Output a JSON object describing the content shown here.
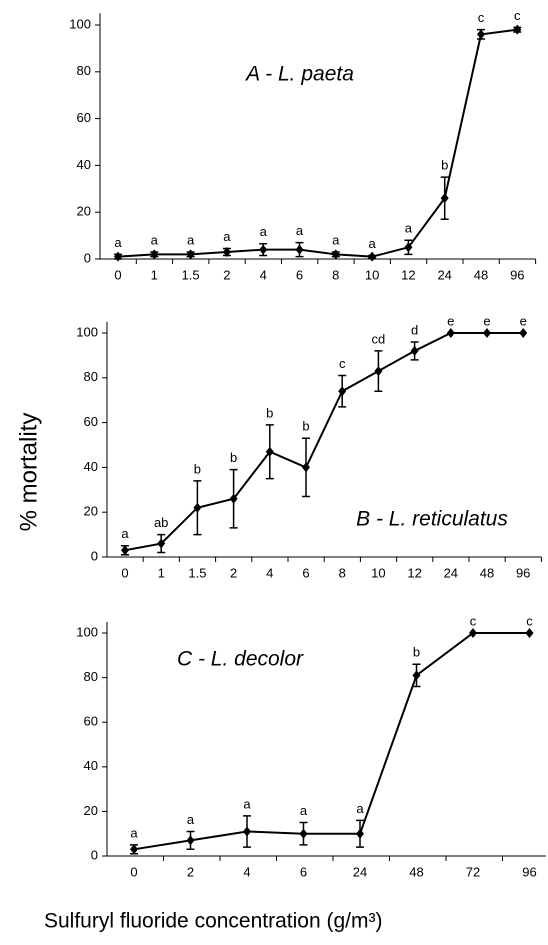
{
  "ylabel": "% mortality",
  "xlabel": "Sulfuryl fluoride concentration (g/m³)",
  "chart_data": [
    {
      "type": "line",
      "title": "A - L. paeta",
      "categories": [
        "0",
        "1",
        "1.5",
        "2",
        "4",
        "6",
        "8",
        "10",
        "12",
        "24",
        "48",
        "96"
      ],
      "ylim": [
        0,
        105
      ],
      "yticks": [
        0,
        20,
        40,
        60,
        80,
        100
      ],
      "series": [
        {
          "color": "#000000",
          "values": [
            1,
            2,
            2,
            3,
            4,
            4,
            2,
            1,
            5,
            26,
            96,
            98
          ],
          "errors": [
            1,
            1,
            1,
            1.5,
            2.5,
            3,
            1,
            0.5,
            3,
            9,
            2,
            1
          ],
          "annotations": [
            "a",
            "a",
            "a",
            "a",
            "a",
            "a",
            "a",
            "a",
            "a",
            "b",
            "c",
            "c"
          ]
        }
      ]
    },
    {
      "type": "line",
      "title": "B - L. reticulatus",
      "categories": [
        "0",
        "1",
        "1.5",
        "2",
        "4",
        "6",
        "8",
        "10",
        "12",
        "24",
        "48",
        "96"
      ],
      "ylim": [
        0,
        105
      ],
      "yticks": [
        0,
        20,
        40,
        60,
        80,
        100
      ],
      "series": [
        {
          "color": "#000000",
          "values": [
            3,
            6,
            22,
            26,
            47,
            40,
            74,
            83,
            92,
            100,
            100,
            100
          ],
          "errors": [
            2,
            4,
            12,
            13,
            12,
            13,
            7,
            9,
            4,
            0,
            0,
            0
          ],
          "annotations": [
            "a",
            "ab",
            "b",
            "b",
            "b",
            "b",
            "c",
            "cd",
            "d",
            "e",
            "e",
            "e"
          ]
        }
      ]
    },
    {
      "type": "line",
      "title": "C - L. decolor",
      "categories": [
        "0",
        "2",
        "4",
        "6",
        "24",
        "48",
        "72",
        "96"
      ],
      "ylim": [
        0,
        105
      ],
      "yticks": [
        0,
        20,
        40,
        60,
        80,
        100
      ],
      "series": [
        {
          "color": "#000000",
          "values": [
            3,
            7,
            11,
            10,
            10,
            81,
            100,
            100
          ],
          "errors": [
            2,
            4,
            7,
            5,
            6,
            5,
            0,
            0
          ],
          "annotations": [
            "a",
            "a",
            "a",
            "a",
            "a",
            "b",
            "c",
            "c"
          ]
        }
      ]
    }
  ]
}
